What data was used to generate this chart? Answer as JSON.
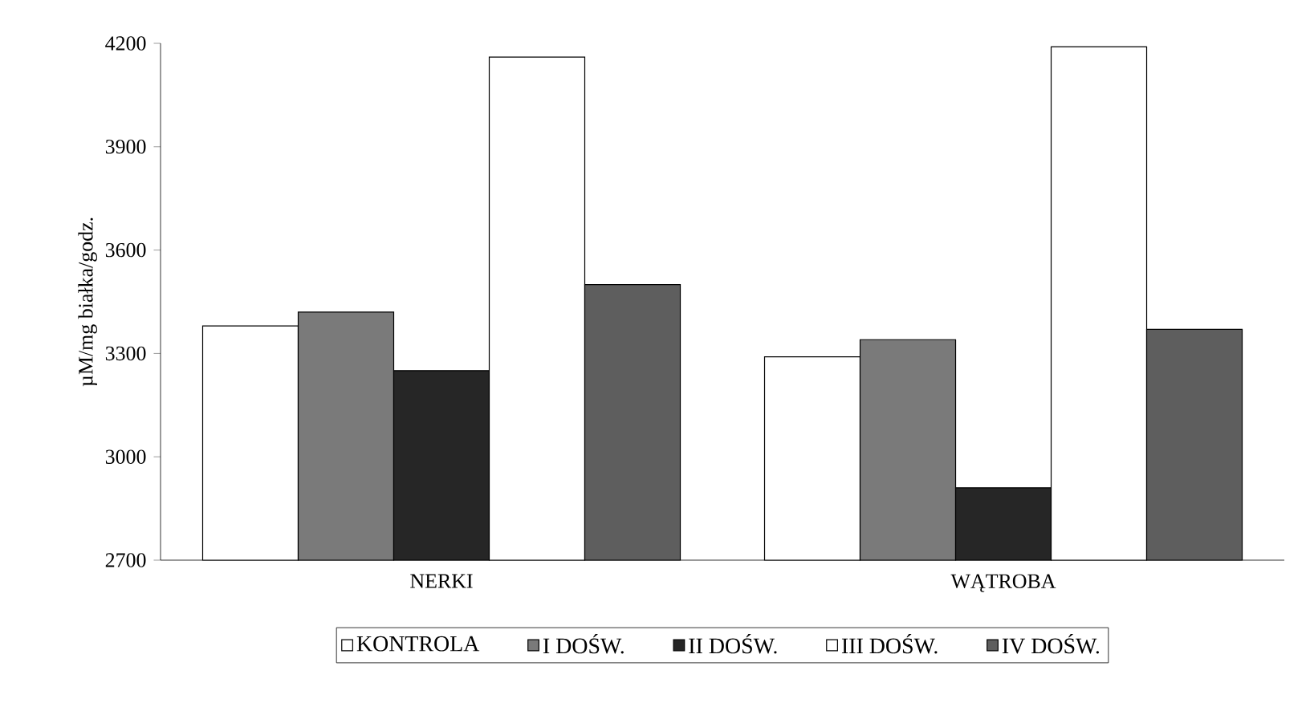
{
  "chart_data": {
    "type": "bar",
    "ylabel": "µM/mg białka/godz.",
    "categories": [
      "NERKI",
      "WĄTROBA"
    ],
    "series": [
      {
        "name": "KONTROLA",
        "color": "#ffffff",
        "values": [
          3380,
          3290
        ]
      },
      {
        "name": "I DOŚW.",
        "color": "#7a7a7a",
        "values": [
          3420,
          3340
        ]
      },
      {
        "name": "II DOŚW.",
        "color": "#262626",
        "values": [
          3250,
          2910
        ]
      },
      {
        "name": "III DOŚW.",
        "color": "#ffffff",
        "values": [
          4160,
          4190
        ]
      },
      {
        "name": "IV DOŚW.",
        "color": "#5e5e5e",
        "values": [
          3500,
          3370
        ]
      }
    ],
    "ylim": [
      2700,
      4200
    ],
    "yticks": [
      2700,
      3000,
      3300,
      3600,
      3900,
      4200
    ],
    "grid": false,
    "legend": "bottom"
  }
}
